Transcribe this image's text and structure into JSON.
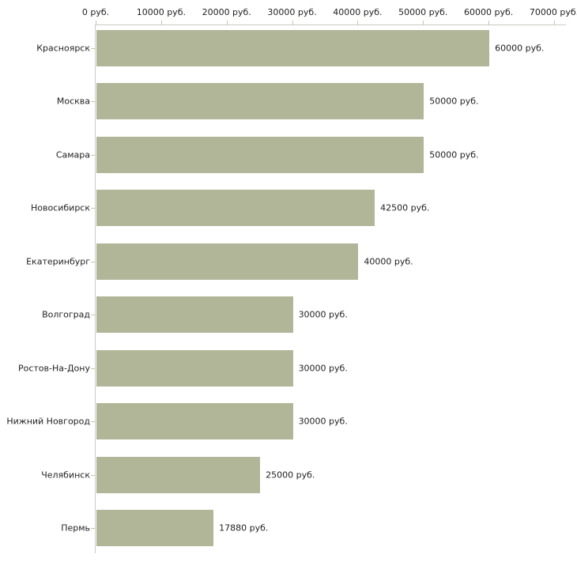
{
  "chart_data": {
    "type": "bar",
    "orientation": "horizontal",
    "title": "",
    "xlabel": "",
    "ylabel": "",
    "grid": false,
    "legend_position": "none",
    "xlim": [
      0,
      70000
    ],
    "x_ticks": [
      0,
      10000,
      20000,
      30000,
      40000,
      50000,
      60000,
      70000
    ],
    "x_tick_labels": [
      "0 руб.",
      "10000 руб.",
      "20000 руб.",
      "30000 руб.",
      "40000 руб.",
      "50000 руб.",
      "60000 руб.",
      "70000 руб."
    ],
    "categories": [
      "Красноярск",
      "Москва",
      "Самара",
      "Новосибирск",
      "Екатеринбург",
      "Волгоград",
      "Ростов-На-Дону",
      "Нижний Новгород",
      "Челябинск",
      "Пермь"
    ],
    "values": [
      60000,
      50000,
      50000,
      42500,
      40000,
      30000,
      30000,
      30000,
      25000,
      17880
    ],
    "value_labels": [
      "60000 руб.",
      "50000 руб.",
      "50000 руб.",
      "42500 руб.",
      "40000 руб.",
      "30000 руб.",
      "30000 руб.",
      "30000 руб.",
      "25000 руб.",
      "17880 руб."
    ],
    "colors": {
      "bar": "#b1b699",
      "axis_line": "#c9c9c3",
      "tick": "#c3c9a6",
      "text": "#1f1f1f",
      "background": "#ffffff"
    }
  }
}
